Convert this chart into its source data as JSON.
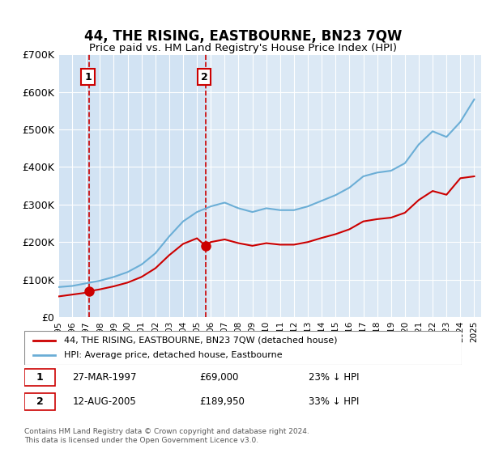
{
  "title": "44, THE RISING, EASTBOURNE, BN23 7QW",
  "subtitle": "Price paid vs. HM Land Registry's House Price Index (HPI)",
  "ylabel": "",
  "ylim": [
    0,
    700000
  ],
  "yticks": [
    0,
    100000,
    200000,
    300000,
    400000,
    500000,
    600000,
    700000
  ],
  "ytick_labels": [
    "£0",
    "£100K",
    "£200K",
    "£300K",
    "£400K",
    "£500K",
    "£600K",
    "£700K"
  ],
  "sale1_date_num": 1997.23,
  "sale1_price": 69000,
  "sale2_date_num": 2005.62,
  "sale2_price": 189950,
  "legend_line1": "44, THE RISING, EASTBOURNE, BN23 7QW (detached house)",
  "legend_line2": "HPI: Average price, detached house, Eastbourne",
  "table_row1_num": "1",
  "table_row1_date": "27-MAR-1997",
  "table_row1_price": "£69,000",
  "table_row1_hpi": "23% ↓ HPI",
  "table_row2_num": "2",
  "table_row2_date": "12-AUG-2005",
  "table_row2_price": "£189,950",
  "table_row2_hpi": "33% ↓ HPI",
  "footer": "Contains HM Land Registry data © Crown copyright and database right 2024.\nThis data is licensed under the Open Government Licence v3.0.",
  "hpi_color": "#6baed6",
  "price_color": "#cc0000",
  "bg_color": "#dce9f5",
  "grid_color": "#ffffff",
  "sale_marker_color": "#cc0000"
}
